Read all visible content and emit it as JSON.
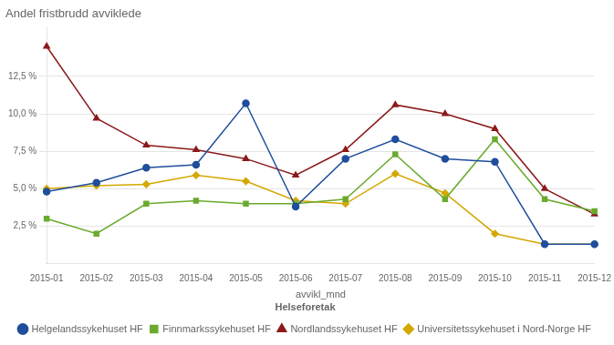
{
  "chart_data": {
    "type": "line",
    "title": "Andel fristbrudd avviklede",
    "xlabel": "avvikl_mnd",
    "categories": [
      "2015-01",
      "2015-02",
      "2015-03",
      "2015-04",
      "2015-05",
      "2015-06",
      "2015-07",
      "2015-08",
      "2015-09",
      "2015-10",
      "2015-11",
      "2015-12"
    ],
    "series": [
      {
        "name": "Helgelandssykehuset HF",
        "color": "#1f4e9c",
        "marker": "circle",
        "values": [
          0.048,
          0.054,
          0.064,
          0.066,
          0.107,
          0.038,
          0.07,
          0.083,
          0.07,
          0.068,
          0.013,
          0.013
        ]
      },
      {
        "name": "Finnmarkssykehuset HF",
        "color": "#6aaa2e",
        "marker": "square",
        "values": [
          0.03,
          0.02,
          0.04,
          0.042,
          0.04,
          0.04,
          0.043,
          0.073,
          0.043,
          0.083,
          0.043,
          0.035
        ]
      },
      {
        "name": "Nordlandssykehuset HF",
        "color": "#8b1a1a",
        "marker": "triangle",
        "values": [
          0.145,
          0.097,
          0.079,
          0.076,
          0.07,
          0.059,
          0.076,
          0.106,
          0.1,
          0.09,
          0.05,
          0.033
        ]
      },
      {
        "name": "Universitetssykehuset i Nord-Norge HF",
        "color": "#d4a800",
        "marker": "diamond",
        "values": [
          0.05,
          0.052,
          0.053,
          0.059,
          0.055,
          0.042,
          0.04,
          0.06,
          0.047,
          0.02,
          0.013,
          0.013
        ]
      }
    ],
    "ylim": [
      0,
      0.158
    ],
    "yticks": [
      {
        "value": 0.025,
        "label": "2,5 %"
      },
      {
        "value": 0.05,
        "label": "5,0 %"
      },
      {
        "value": 0.075,
        "label": "7,5 %"
      },
      {
        "value": 0.1,
        "label": "10,0 %"
      },
      {
        "value": 0.125,
        "label": "12,5 %"
      }
    ],
    "grid": true,
    "legend": "bottom",
    "legend_title": "Helseforetak"
  }
}
